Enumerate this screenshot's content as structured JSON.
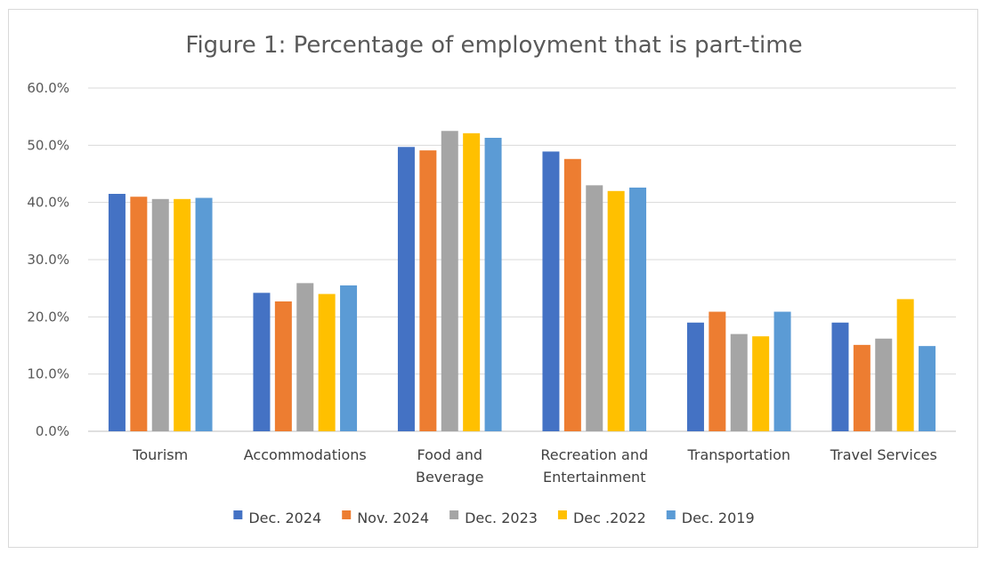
{
  "chart_data": {
    "type": "bar",
    "title": "Figure 1: Percentage of employment  that is part-time",
    "xlabel": "",
    "ylabel": "",
    "ylim": [
      0,
      60
    ],
    "yticks": [
      "0.0%",
      "10.0%",
      "20.0%",
      "30.0%",
      "40.0%",
      "50.0%",
      "60.0%"
    ],
    "grid": true,
    "legend_position": "bottom",
    "categories": [
      [
        "Tourism"
      ],
      [
        "Accommodations"
      ],
      [
        "Food and",
        "Beverage"
      ],
      [
        "Recreation and",
        "Entertainment"
      ],
      [
        "Transportation"
      ],
      [
        "Travel Services"
      ]
    ],
    "series": [
      {
        "name": "Dec. 2024",
        "color": "#4472C4",
        "values": [
          41.5,
          24.2,
          49.7,
          48.9,
          19.0,
          19.0
        ]
      },
      {
        "name": "Nov. 2024",
        "color": "#ED7D31",
        "values": [
          41.0,
          22.7,
          49.1,
          47.6,
          20.9,
          15.1
        ]
      },
      {
        "name": "Dec. 2023",
        "color": "#A5A5A5",
        "values": [
          40.6,
          25.9,
          52.5,
          43.0,
          17.0,
          16.2
        ]
      },
      {
        "name": "Dec .2022",
        "color": "#FFC000",
        "values": [
          40.6,
          24.0,
          52.1,
          42.0,
          16.6,
          23.1
        ]
      },
      {
        "name": "Dec. 2019",
        "color": "#5B9BD5",
        "values": [
          40.8,
          25.5,
          51.3,
          42.6,
          20.9,
          14.9
        ]
      }
    ]
  }
}
